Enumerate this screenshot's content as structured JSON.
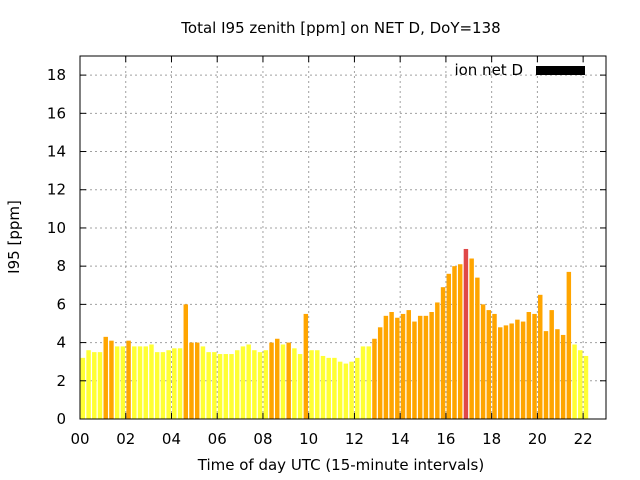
{
  "chart_data": {
    "type": "bar",
    "title": "Total I95 zenith [ppm] on NET D, DoY=138",
    "xlabel": "Time of day UTC (15-minute intervals)",
    "ylabel": "I95 [ppm]",
    "xlim": [
      0,
      23
    ],
    "ylim": [
      0,
      19
    ],
    "x_interval_hours": 0.25,
    "x_ticks": [
      0,
      2,
      4,
      6,
      8,
      10,
      12,
      14,
      16,
      18,
      20,
      22
    ],
    "x_tick_labels": [
      "00",
      "02",
      "04",
      "06",
      "08",
      "10",
      "12",
      "14",
      "16",
      "18",
      "20",
      "22"
    ],
    "y_ticks": [
      0,
      2,
      4,
      6,
      8,
      10,
      12,
      14,
      16,
      18
    ],
    "grid": true,
    "legend": {
      "label": "ion net D",
      "placement": "top-right",
      "color": "#000000"
    },
    "color_scale": [
      {
        "min": 0,
        "max": 4.0,
        "color": "#ffff33"
      },
      {
        "min": 4.0,
        "max": 8.5,
        "color": "#ffa500"
      },
      {
        "min": 8.5,
        "max": 99,
        "color": "#e04848"
      }
    ],
    "series": [
      {
        "name": "ion net D",
        "values": [
          3.2,
          3.6,
          3.5,
          3.5,
          4.3,
          4.1,
          3.8,
          3.8,
          4.1,
          3.8,
          3.8,
          3.8,
          3.9,
          3.5,
          3.5,
          3.6,
          3.7,
          3.7,
          6.0,
          4.0,
          4.0,
          3.8,
          3.5,
          3.5,
          3.4,
          3.4,
          3.4,
          3.6,
          3.8,
          3.9,
          3.6,
          3.5,
          3.6,
          4.0,
          4.2,
          3.9,
          4.0,
          3.7,
          3.4,
          5.5,
          3.6,
          3.6,
          3.3,
          3.2,
          3.2,
          3.0,
          2.9,
          3.0,
          3.2,
          3.8,
          3.8,
          4.2,
          4.8,
          5.4,
          5.6,
          5.3,
          5.5,
          5.7,
          5.1,
          5.4,
          5.4,
          5.6,
          6.1,
          6.9,
          7.6,
          8.0,
          8.1,
          8.9,
          8.4,
          7.4,
          6.0,
          5.7,
          5.5,
          4.8,
          4.9,
          5.0,
          5.2,
          5.1,
          5.6,
          5.5,
          6.5,
          4.6,
          5.7,
          4.7,
          4.4,
          7.7,
          3.9,
          3.6,
          3.3
        ]
      }
    ]
  }
}
